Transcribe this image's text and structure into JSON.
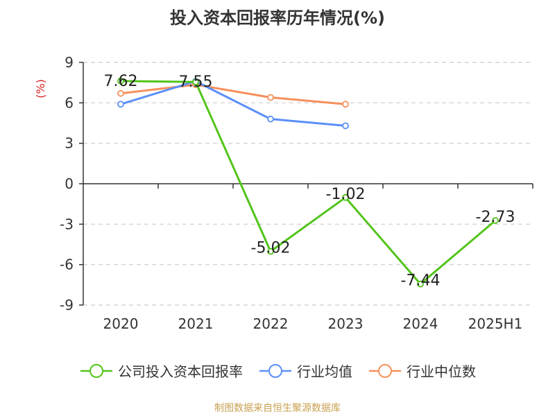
{
  "title": "投入资本回报率历年情况(%)",
  "source": "制图数据来自恒生聚源数据库",
  "chart_data": {
    "type": "line",
    "title": "投入资本回报率历年情况(%)",
    "ylabel": "(%)",
    "categories": [
      "2020",
      "2021",
      "2022",
      "2023",
      "2024",
      "2025H1"
    ],
    "ylim": [
      -9,
      9
    ],
    "yticks": [
      9,
      6,
      3,
      0,
      -3,
      -6,
      -9
    ],
    "grid": true,
    "legend_position": "bottom",
    "series": [
      {
        "name": "公司投入资本回报率",
        "color": "#52c41a",
        "values": [
          7.62,
          7.55,
          -5.02,
          -1.02,
          -7.44,
          -2.73
        ],
        "labels": [
          "7.62",
          "7.55",
          "-5.02",
          "-1.02",
          "-7.44",
          "-2.73"
        ]
      },
      {
        "name": "行业均值",
        "color": "#5b8ff9",
        "values": [
          5.9,
          7.6,
          4.8,
          4.3,
          null,
          null
        ]
      },
      {
        "name": "行业中位数",
        "color": "#f6905b",
        "values": [
          6.7,
          7.35,
          6.4,
          5.9,
          null,
          null
        ]
      }
    ]
  }
}
